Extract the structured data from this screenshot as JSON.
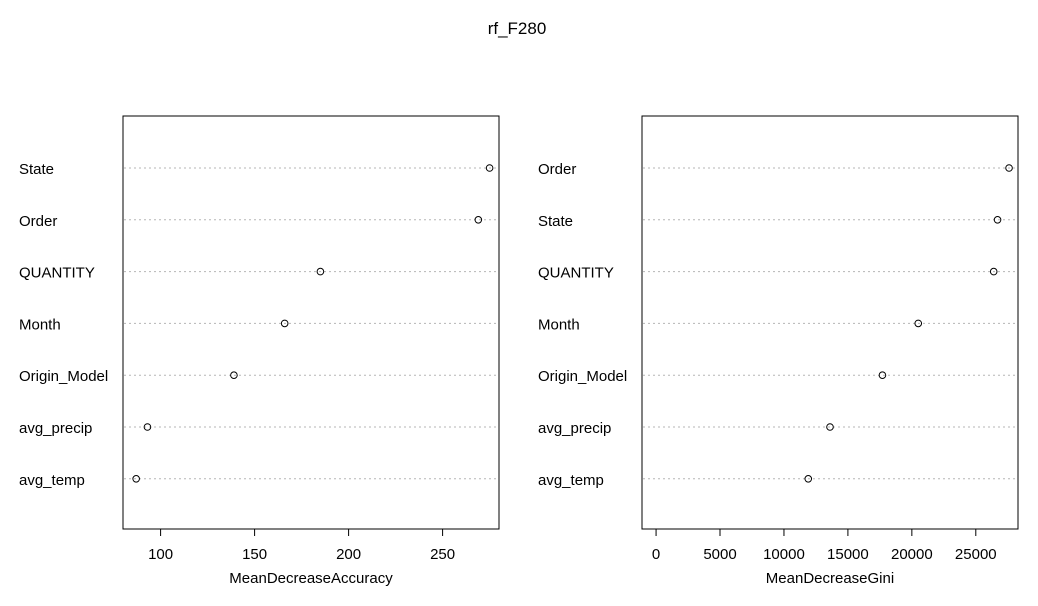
{
  "figure_title": "rf_F280",
  "chart_data": [
    {
      "type": "scatter",
      "title": "",
      "xlabel": "MeanDecreaseAccuracy",
      "ylabel": "",
      "xlim": [
        80,
        280
      ],
      "xticks": [
        100,
        150,
        200,
        250
      ],
      "grid": "horizontal dotted",
      "categories": [
        "State",
        "Order",
        "QUANTITY",
        "Month",
        "Origin_Model",
        "avg_precip",
        "avg_temp"
      ],
      "values": [
        275,
        269,
        185,
        166,
        139,
        93,
        87
      ]
    },
    {
      "type": "scatter",
      "title": "",
      "xlabel": "MeanDecreaseGini",
      "ylabel": "",
      "xlim": [
        -1100,
        28300
      ],
      "xticks": [
        0,
        5000,
        10000,
        15000,
        20000,
        25000
      ],
      "grid": "horizontal dotted",
      "categories": [
        "Order",
        "State",
        "QUANTITY",
        "Month",
        "Origin_Model",
        "avg_precip",
        "avg_temp"
      ],
      "values": [
        27600,
        26700,
        26400,
        20500,
        17700,
        13600,
        11900
      ]
    }
  ]
}
